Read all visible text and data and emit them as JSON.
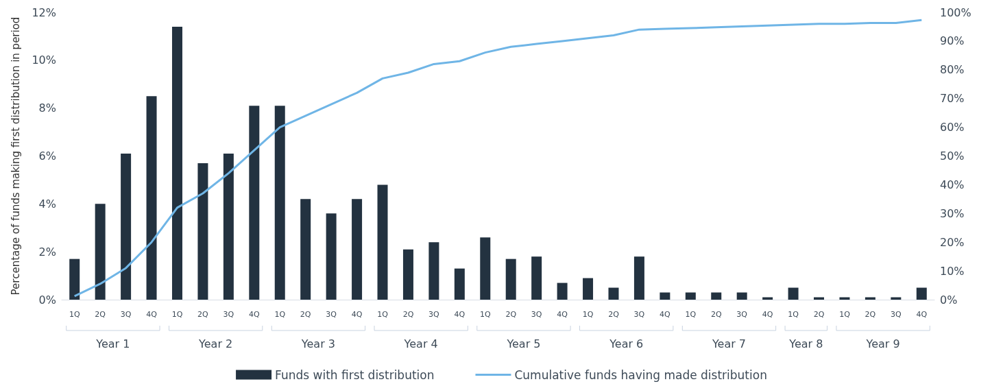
{
  "chart_data": {
    "type": "bar",
    "ylabel": "Percentage of funds making first distribution in period",
    "categories": [
      "1Q",
      "2Q",
      "3Q",
      "4Q",
      "1Q",
      "2Q",
      "3Q",
      "4Q",
      "1Q",
      "2Q",
      "3Q",
      "4Q",
      "1Q",
      "2Q",
      "3Q",
      "4Q",
      "1Q",
      "2Q",
      "3Q",
      "4Q",
      "1Q",
      "2Q",
      "3Q",
      "4Q",
      "1Q",
      "2Q",
      "3Q",
      "4Q",
      "1Q",
      "2Q",
      "1Q",
      "2Q",
      "3Q",
      "4Q"
    ],
    "series": [
      {
        "name": "Funds with first distribution",
        "color": "#233240",
        "values": [
          1.7,
          4.0,
          6.1,
          8.5,
          11.4,
          5.7,
          6.1,
          8.1,
          8.1,
          4.2,
          3.6,
          4.2,
          4.8,
          2.1,
          2.4,
          1.3,
          2.6,
          1.7,
          1.8,
          0.7,
          0.9,
          0.5,
          1.8,
          0.3,
          0.3,
          0.3,
          0.3,
          0.1,
          0.5,
          0.1,
          0.1,
          0.1,
          0.1,
          0.5
        ]
      },
      {
        "name": "Cumulative funds having made distribution",
        "type": "line",
        "axis": "y2",
        "color": "#6fb5e6",
        "values": [
          1.2,
          5.5,
          11,
          20,
          32,
          37,
          44,
          52,
          60,
          64,
          68,
          72,
          77,
          79,
          82,
          83,
          86,
          88,
          89,
          90,
          91,
          92,
          94,
          94.3,
          94.5,
          94.8,
          95.1,
          95.4,
          95.7,
          96.0,
          96.0,
          96.3,
          96.3,
          97.3
        ]
      }
    ],
    "ylim": [
      0,
      12
    ],
    "yticks": [
      {
        "value": 0,
        "label": "0%"
      },
      {
        "value": 2,
        "label": "2%"
      },
      {
        "value": 4,
        "label": "4%"
      },
      {
        "value": 6,
        "label": "6%"
      },
      {
        "value": 8,
        "label": "8%"
      },
      {
        "value": 10,
        "label": "10%"
      },
      {
        "value": 12,
        "label": "12%"
      }
    ],
    "y2lim": [
      0,
      100
    ],
    "y2ticks": [
      {
        "value": 0,
        "label": "0%"
      },
      {
        "value": 10,
        "label": "10%"
      },
      {
        "value": 20,
        "label": "20%"
      },
      {
        "value": 30,
        "label": "30%"
      },
      {
        "value": 40,
        "label": "40%"
      },
      {
        "value": 50,
        "label": "50%"
      },
      {
        "value": 60,
        "label": "60%"
      },
      {
        "value": 70,
        "label": "70%"
      },
      {
        "value": 80,
        "label": "80%"
      },
      {
        "value": 90,
        "label": "90%"
      },
      {
        "value": 100,
        "label": "100%"
      }
    ],
    "annotations": [
      "Year 1",
      "Year 2",
      "Year 3",
      "Year 4",
      "Year 5",
      "Year 6",
      "Year 7",
      "Year 8",
      "Year 9"
    ],
    "grid": false,
    "legend": "bottom",
    "marker": "none",
    "line_style": "solid"
  }
}
